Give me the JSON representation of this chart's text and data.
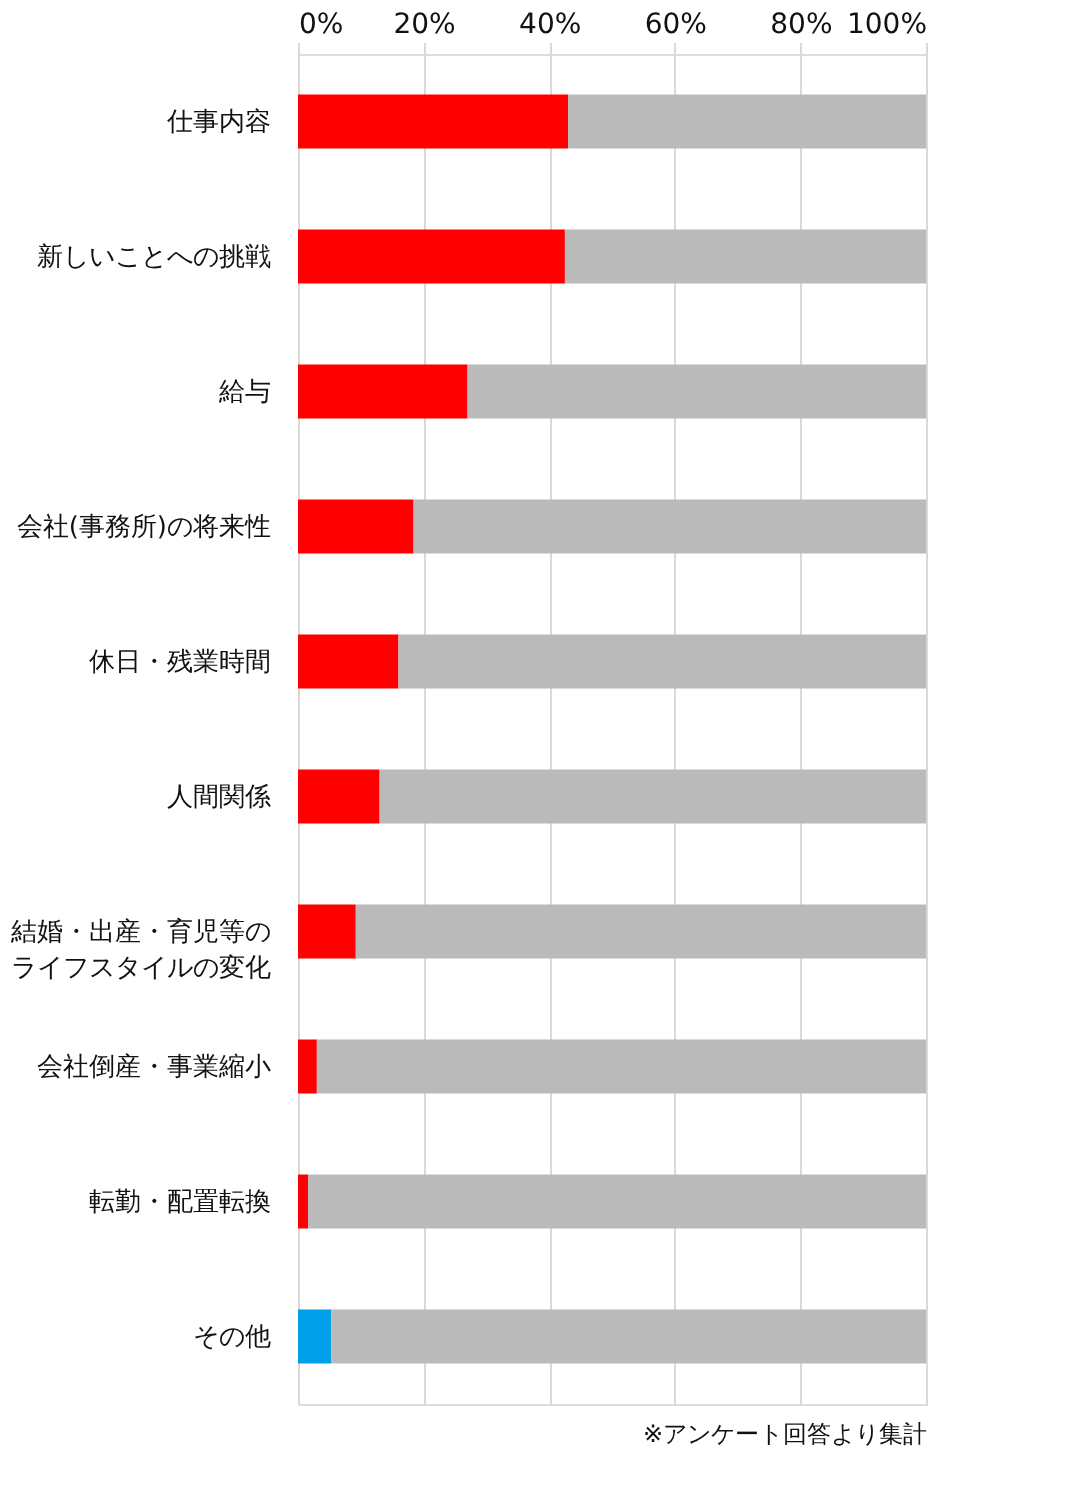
{
  "chart_data": {
    "type": "bar",
    "orientation": "horizontal",
    "stacked": true,
    "categories": [
      "仕事内容",
      "新しいことへの挑戦",
      "給与",
      "会社(事務所)の将来性",
      "休日・残業時間",
      "人間関係",
      "結婚・出産・育児等のライフスタイルの変化",
      "会社倒産・事業縮小",
      "転勤・配置転換",
      "その他"
    ],
    "series": [
      {
        "colors": [
          "#ff0000",
          "#ff0000",
          "#ff0000",
          "#ff0000",
          "#ff0000",
          "#ff0000",
          "#ff0000",
          "#ff0000",
          "#ff0000",
          "#00a0e9"
        ],
        "values": [
          43,
          42.5,
          27,
          18.4,
          16,
          13,
          9.2,
          3,
          1.6,
          5.3
        ]
      },
      {
        "color": "#bababa",
        "values": [
          57,
          57.5,
          73,
          81.6,
          84,
          87,
          90.8,
          97,
          98.4,
          94.7
        ]
      }
    ],
    "xlim": [
      0,
      100
    ],
    "xticks": [
      {
        "value": 0,
        "label": "0%"
      },
      {
        "value": 20,
        "label": "20%"
      },
      {
        "value": 40,
        "label": "40%"
      },
      {
        "value": 60,
        "label": "60%"
      },
      {
        "value": 80,
        "label": "80%"
      },
      {
        "value": 100,
        "label": "100%"
      }
    ],
    "grid": "x",
    "annotations": [
      "※アンケート回答より集計"
    ]
  }
}
